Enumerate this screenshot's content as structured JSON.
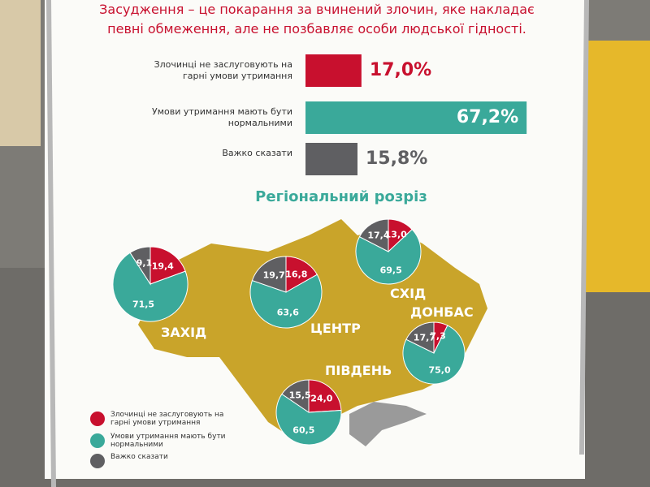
{
  "chart_data": [
    {
      "type": "bar",
      "title": "Засудження – це покарання за вчинений злочин, яке накладає певні обмеження, але не позбавляє особи людської гідності.",
      "categories": [
        "Злочинці не заслуговують на гарні умови утримання",
        "Умови утримання мають бути нормальними",
        "Важко сказати"
      ],
      "values": [
        17.0,
        67.2,
        15.8
      ],
      "value_labels": [
        "17,0%",
        "67,2%",
        "15,8%"
      ],
      "colors": [
        "#c8102e",
        "#3aa99a",
        "#5f5f62"
      ]
    },
    {
      "type": "pie",
      "title": "Регіональний розріз",
      "categories": [
        "Злочинці не заслуговують на гарні умови утримання",
        "Умови утримання мають бути нормальними",
        "Важко сказати"
      ],
      "colors": [
        "#c8102e",
        "#3aa99a",
        "#5f5f62"
      ],
      "pies": [
        {
          "name": "ЗАХІД",
          "values": [
            19.4,
            71.5,
            9.1
          ],
          "value_labels": [
            "19,4",
            "71,5",
            "9,1"
          ]
        },
        {
          "name": "ЦЕНТР",
          "values": [
            16.8,
            63.6,
            19.7
          ],
          "value_labels": [
            "16,8",
            "63,6",
            "19,7"
          ]
        },
        {
          "name": "СХІД",
          "values": [
            13.0,
            69.5,
            17.4
          ],
          "value_labels": [
            "13,0",
            "69,5",
            "17,4"
          ]
        },
        {
          "name": "ДОНБАС",
          "values": [
            7.3,
            75.0,
            17.7
          ],
          "value_labels": [
            "7,3",
            "75,0",
            "17,7"
          ]
        },
        {
          "name": "ПІВДЕНЬ",
          "values": [
            24.0,
            60.5,
            15.5
          ],
          "value_labels": [
            "24,0",
            "60,5",
            "15,5"
          ]
        }
      ]
    }
  ]
}
